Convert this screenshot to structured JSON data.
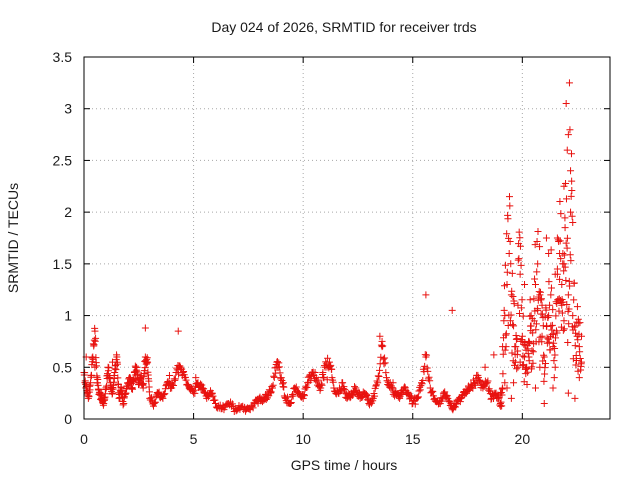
{
  "chart_data": {
    "type": "scatter",
    "title": "Day 024 of 2026, SRMTID for receiver trds",
    "xlabel": "GPS time / hours",
    "ylabel": "SRMTID / TECUs",
    "xlim": [
      0,
      24
    ],
    "ylim": [
      0,
      3.5
    ],
    "xticks": [
      0,
      5,
      10,
      15,
      20
    ],
    "yticks": [
      0,
      0.5,
      1,
      1.5,
      2,
      2.5,
      3,
      3.5
    ],
    "xtick_labels": [
      "0",
      "5",
      "10",
      "15",
      "20"
    ],
    "ytick_labels": [
      "0",
      "0.5",
      "1",
      "1.5",
      "2",
      "2.5",
      "3",
      "3.5"
    ],
    "grid": true,
    "marker": "plus",
    "color": "#e8120f",
    "series": [
      {
        "name": "SRMTID",
        "x": [
          0.0,
          0.1,
          0.2,
          0.3,
          0.4,
          0.5,
          0.6,
          0.7,
          0.8,
          0.9,
          1.0,
          1.1,
          1.2,
          1.3,
          1.4,
          1.5,
          1.6,
          1.7,
          1.8,
          1.9,
          2.0,
          2.1,
          2.2,
          2.3,
          2.4,
          2.5,
          2.6,
          2.7,
          2.8,
          2.9,
          3.0,
          3.2,
          3.4,
          3.6,
          3.8,
          4.0,
          4.2,
          4.4,
          4.6,
          4.8,
          5.0,
          5.2,
          5.4,
          5.6,
          5.8,
          6.0,
          6.3,
          6.6,
          6.9,
          7.2,
          7.5,
          7.8,
          8.0,
          8.2,
          8.4,
          8.6,
          8.8,
          9.0,
          9.2,
          9.4,
          9.6,
          9.8,
          10.0,
          10.2,
          10.4,
          10.6,
          10.8,
          11.0,
          11.2,
          11.4,
          11.6,
          11.8,
          12.0,
          12.2,
          12.4,
          12.6,
          12.8,
          13.0,
          13.2,
          13.4,
          13.6,
          13.8,
          14.0,
          14.2,
          14.4,
          14.6,
          14.8,
          15.0,
          15.2,
          15.4,
          15.6,
          15.8,
          16.0,
          16.2,
          16.4,
          16.6,
          16.8,
          17.0,
          17.2,
          17.4,
          17.6,
          17.8,
          18.0,
          18.2,
          18.4,
          18.6,
          18.8,
          19.0,
          19.1,
          19.2,
          19.3,
          19.4,
          19.5,
          19.6,
          19.7,
          19.8,
          19.9,
          20.0,
          20.1,
          20.2,
          20.3,
          20.4,
          20.5,
          20.6,
          20.7,
          20.8,
          20.9,
          21.0,
          21.1,
          21.2,
          21.3,
          21.4,
          21.5,
          21.6,
          21.7,
          21.8,
          21.9,
          22.0,
          22.1,
          22.2,
          22.3,
          22.4,
          22.5,
          22.6,
          22.7,
          0.1,
          0.5,
          0.6,
          1.3,
          2.8,
          3.9,
          4.3,
          5.1,
          8.8,
          9.1,
          10.9,
          11.1,
          11.3,
          13.5,
          13.6,
          14.1,
          15.6,
          16.8,
          18.3,
          18.7,
          19.0,
          19.2,
          19.3,
          19.5,
          19.9,
          20.3,
          20.6,
          20.9,
          21.3,
          21.6,
          21.7,
          21.8,
          21.85,
          21.9,
          21.95,
          22.0,
          22.05,
          22.1,
          22.15,
          22.2,
          22.25,
          22.3,
          21.75,
          21.5,
          20.1,
          20.4,
          19.1,
          19.6,
          20.8,
          21.1,
          21.2,
          22.4,
          22.6,
          22.7,
          20.0,
          19.8,
          21.4,
          21.0,
          20.7,
          22.1,
          21.9,
          21.6
        ],
        "y": [
          0.45,
          0.3,
          0.2,
          0.35,
          0.6,
          0.85,
          0.4,
          0.25,
          0.2,
          0.15,
          0.3,
          0.5,
          0.35,
          0.25,
          0.45,
          0.6,
          0.2,
          0.3,
          0.15,
          0.25,
          0.35,
          0.4,
          0.3,
          0.45,
          0.5,
          0.35,
          0.4,
          0.3,
          0.6,
          0.55,
          0.2,
          0.15,
          0.25,
          0.2,
          0.35,
          0.3,
          0.45,
          0.5,
          0.4,
          0.3,
          0.25,
          0.35,
          0.3,
          0.2,
          0.25,
          0.15,
          0.1,
          0.15,
          0.1,
          0.12,
          0.1,
          0.15,
          0.2,
          0.18,
          0.25,
          0.3,
          0.55,
          0.4,
          0.2,
          0.15,
          0.3,
          0.25,
          0.2,
          0.35,
          0.45,
          0.4,
          0.3,
          0.5,
          0.55,
          0.3,
          0.25,
          0.35,
          0.2,
          0.25,
          0.3,
          0.2,
          0.25,
          0.15,
          0.2,
          0.35,
          0.75,
          0.4,
          0.3,
          0.25,
          0.2,
          0.3,
          0.25,
          0.15,
          0.2,
          0.35,
          0.6,
          0.3,
          0.2,
          0.15,
          0.25,
          0.2,
          0.1,
          0.15,
          0.2,
          0.25,
          0.3,
          0.35,
          0.4,
          0.3,
          0.35,
          0.2,
          0.25,
          0.15,
          0.3,
          1.0,
          1.3,
          1.6,
          1.2,
          0.9,
          0.7,
          1.1,
          1.4,
          0.8,
          0.6,
          0.5,
          0.75,
          0.9,
          0.65,
          1.3,
          1.5,
          1.2,
          0.8,
          0.6,
          0.9,
          1.0,
          1.2,
          0.7,
          0.5,
          1.4,
          1.6,
          1.3,
          1.5,
          1.7,
          1.2,
          2.4,
          1.0,
          0.9,
          0.8,
          0.7,
          0.55,
          0.6,
          0.5,
          0.35,
          0.55,
          0.88,
          0.42,
          0.85,
          0.4,
          0.5,
          0.35,
          0.45,
          0.38,
          0.48,
          0.8,
          0.7,
          0.35,
          1.2,
          1.05,
          0.5,
          0.62,
          0.25,
          0.35,
          0.3,
          0.2,
          0.55,
          0.6,
          0.3,
          1.1,
          0.9,
          1.45,
          1.35,
          1.1,
          1.6,
          2.25,
          1.85,
          3.05,
          2.6,
          2.75,
          3.25,
          2.0,
          2.3,
          1.9,
          1.55,
          1.4,
          1.3,
          1.0,
          0.7,
          0.35,
          0.5,
          1.75,
          1.6,
          0.2,
          0.4,
          0.8,
          0.75,
          0.5,
          0.3,
          0.15,
          1.05,
          0.25,
          0.95,
          1.75
        ]
      }
    ]
  }
}
